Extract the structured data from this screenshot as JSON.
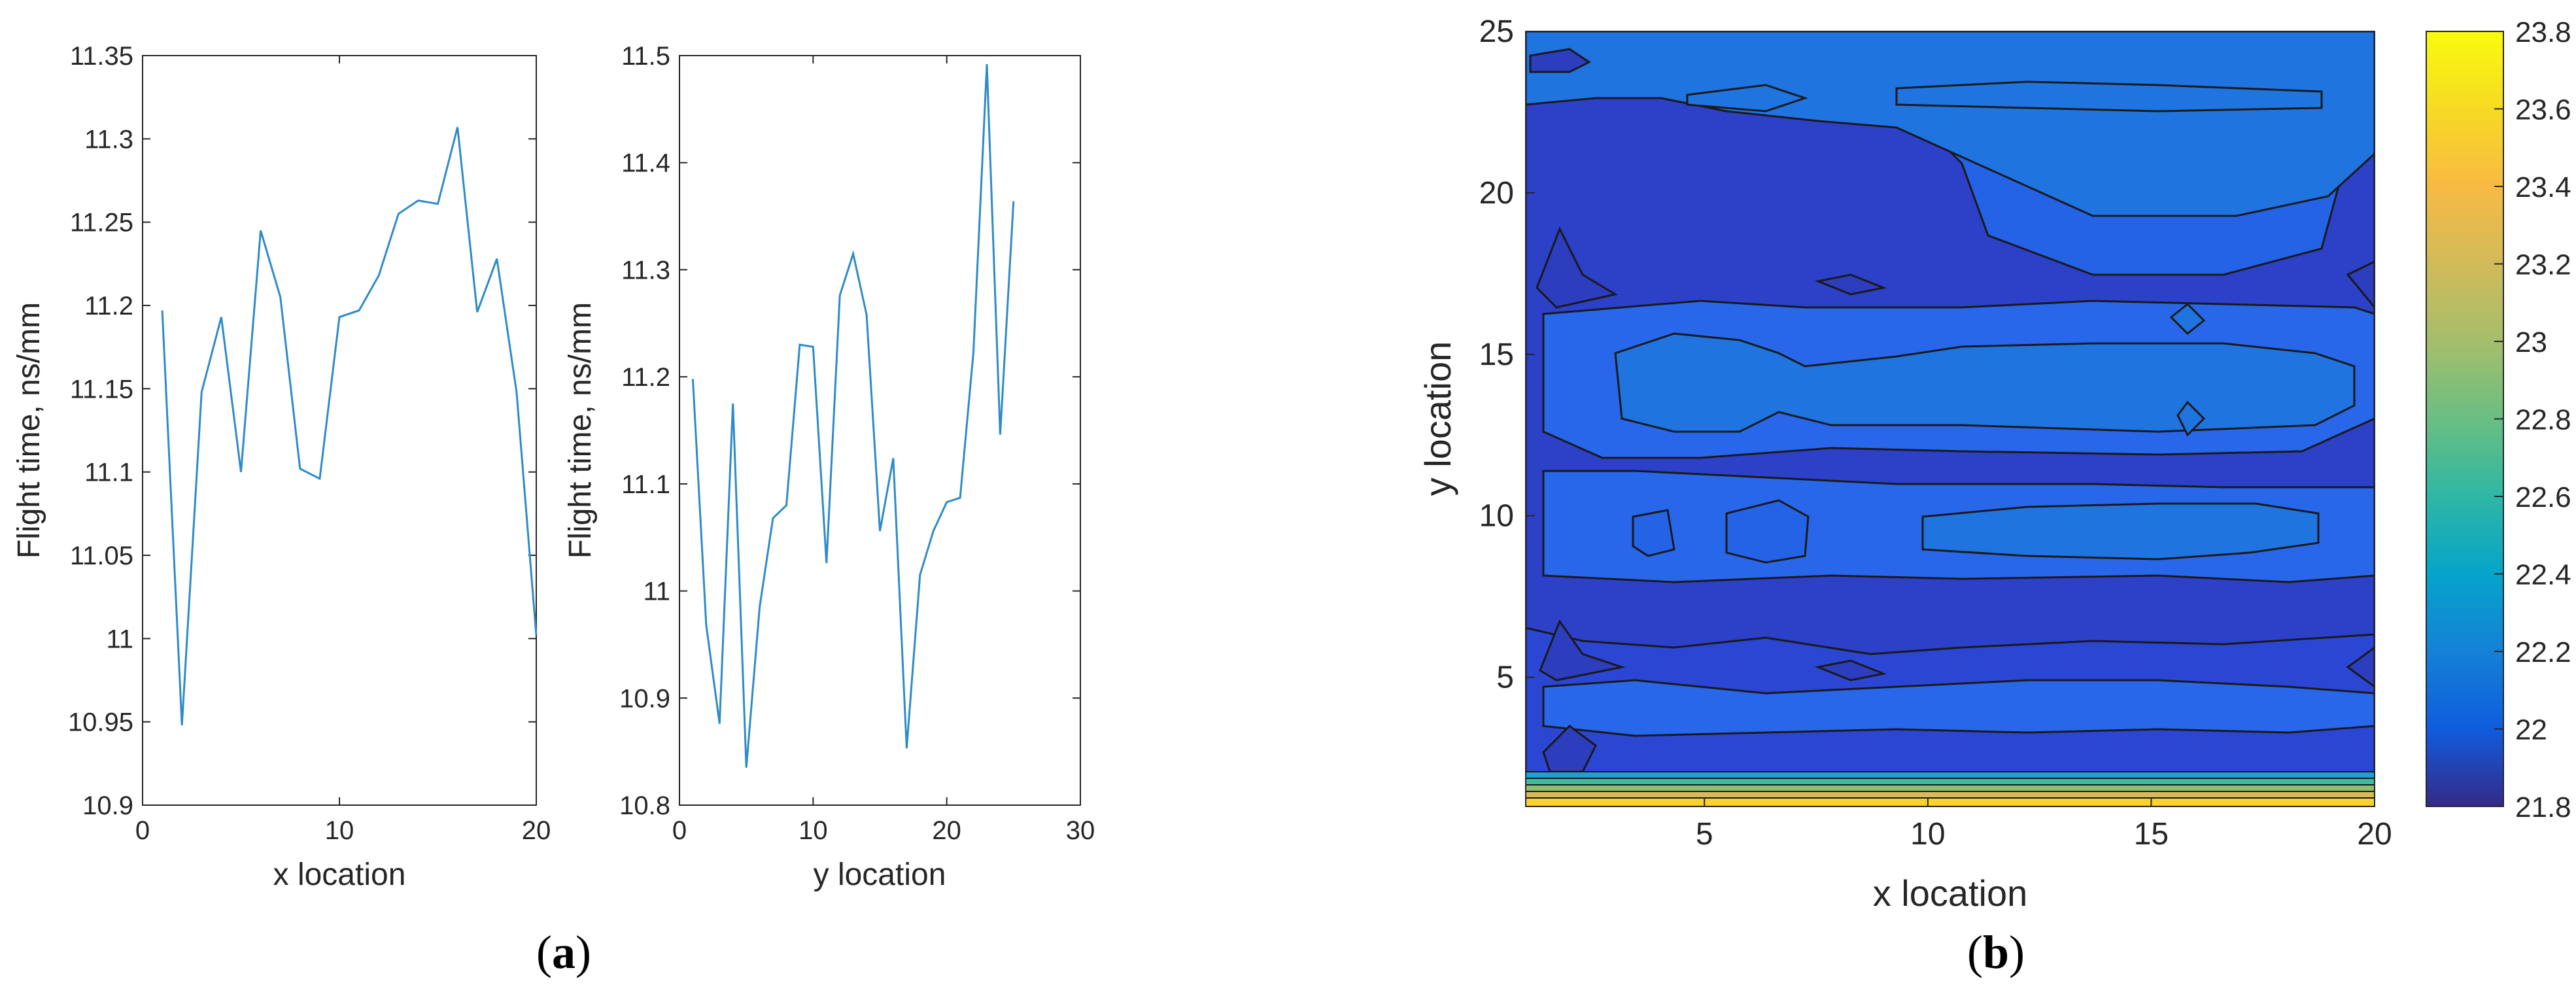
{
  "panel_labels": {
    "a_open": "(",
    "a_letter": "a",
    "a_close": ")",
    "b_open": "(",
    "b_letter": "b",
    "b_close": ")"
  },
  "chart_data": [
    {
      "type": "line",
      "panel": "a-left",
      "xlabel": "x location",
      "ylabel": "Flight time, ns/mm",
      "xlim": [
        0,
        20
      ],
      "ylim": [
        10.9,
        11.35
      ],
      "xticks": [
        0,
        10,
        20
      ],
      "yticks": [
        10.9,
        10.95,
        11,
        11.05,
        11.1,
        11.15,
        11.2,
        11.25,
        11.3,
        11.35
      ],
      "ytick_labels": [
        "10.9",
        "10.95",
        "11",
        "11.05",
        "11.1",
        "11.15",
        "11.2",
        "11.25",
        "11.3",
        "11.35"
      ],
      "line_color": "#2E8BC7",
      "x": [
        1,
        2,
        3,
        4,
        5,
        6,
        7,
        8,
        9,
        10,
        11,
        12,
        13,
        14,
        15,
        16,
        17,
        18,
        19,
        20
      ],
      "y": [
        11.197,
        10.948,
        11.148,
        11.193,
        11.1,
        11.245,
        11.205,
        11.102,
        11.096,
        11.193,
        11.197,
        11.218,
        11.255,
        11.263,
        11.261,
        11.307,
        11.196,
        11.228,
        11.148,
        11.002
      ]
    },
    {
      "type": "line",
      "panel": "a-right",
      "xlabel": "y location",
      "ylabel": "Flight time, ns/mm",
      "xlim": [
        0,
        30
      ],
      "ylim": [
        10.8,
        11.5
      ],
      "xticks": [
        0,
        10,
        20,
        30
      ],
      "yticks": [
        10.8,
        10.9,
        11,
        11.1,
        11.2,
        11.3,
        11.4,
        11.5
      ],
      "ytick_labels": [
        "10.8",
        "10.9",
        "11",
        "11.1",
        "11.2",
        "11.3",
        "11.4",
        "11.5"
      ],
      "line_color": "#2E8BC7",
      "x": [
        1,
        2,
        3,
        4,
        5,
        6,
        7,
        8,
        9,
        10,
        11,
        12,
        13,
        14,
        15,
        16,
        17,
        18,
        19,
        20,
        21,
        22,
        23,
        24,
        25
      ],
      "y": [
        11.198,
        10.968,
        10.876,
        11.175,
        10.835,
        10.985,
        11.068,
        11.08,
        11.23,
        11.228,
        11.026,
        11.276,
        11.315,
        11.258,
        11.056,
        11.124,
        10.853,
        11.015,
        11.056,
        11.083,
        11.087,
        11.223,
        11.492,
        11.146,
        11.364
      ]
    },
    {
      "type": "heatmap",
      "subtype": "contour",
      "panel": "b",
      "xlabel": "x location",
      "ylabel": "y location",
      "xlim": [
        1,
        20
      ],
      "ylim": [
        1,
        25
      ],
      "xticks": [
        5,
        10,
        15,
        20
      ],
      "yticks": [
        5,
        10,
        15,
        20,
        25
      ],
      "colorbar": {
        "range": [
          21.8,
          23.8
        ],
        "ticks": [
          21.8,
          22,
          22.2,
          22.4,
          22.6,
          22.8,
          23,
          23.2,
          23.4,
          23.6,
          23.8
        ],
        "tick_labels": [
          "21.8",
          "22",
          "22.2",
          "22.4",
          "22.6",
          "22.8",
          "23",
          "23.2",
          "23.4",
          "23.6",
          "23.8"
        ],
        "colormap": "parula"
      },
      "grid_x": [
        1,
        5,
        10,
        15,
        20
      ],
      "grid_y": [
        1,
        5,
        10,
        15,
        20,
        25
      ],
      "z": [
        [
          23.8,
          23.8,
          23.8,
          23.8,
          23.8
        ],
        [
          21.9,
          22.0,
          22.0,
          22.1,
          21.9
        ],
        [
          22.0,
          22.2,
          22.3,
          22.3,
          22.1
        ],
        [
          22.0,
          22.3,
          22.3,
          22.3,
          22.1
        ],
        [
          22.0,
          22.1,
          22.0,
          22.2,
          22.0
        ],
        [
          22.0,
          22.2,
          22.3,
          22.4,
          22.2
        ]
      ]
    }
  ]
}
